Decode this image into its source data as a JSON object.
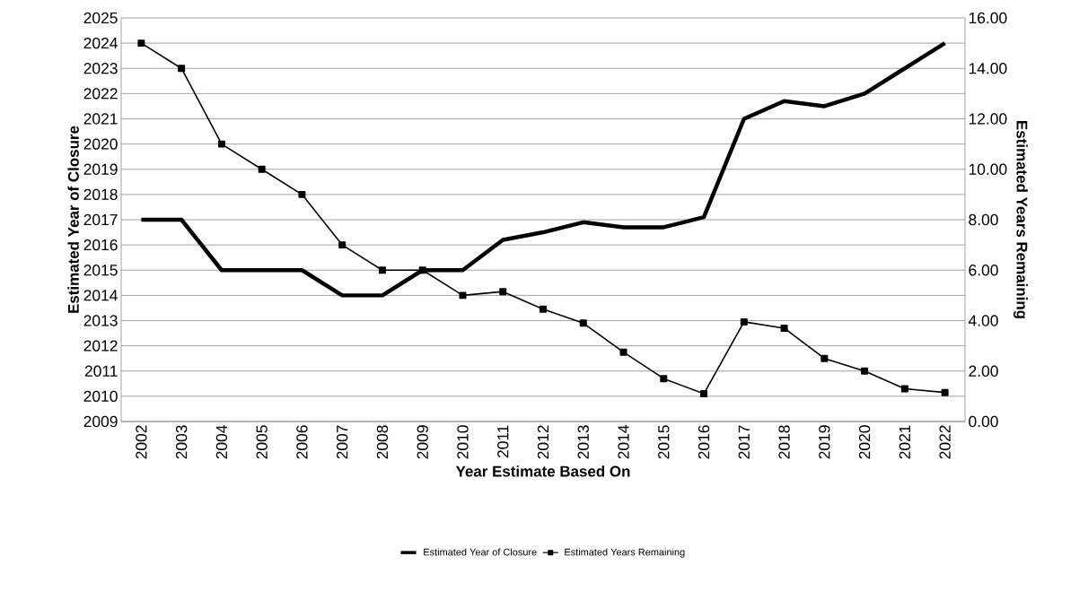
{
  "chart_data": {
    "type": "line",
    "xlabel": "Year Estimate Based On",
    "ylabel": "Estimated Year of Closure",
    "y2label": "Estimated Years Remaining",
    "categories": [
      "2002",
      "2003",
      "2004",
      "2005",
      "2006",
      "2007",
      "2008",
      "2009",
      "2010",
      "2011",
      "2012",
      "2013",
      "2014",
      "2015",
      "2016",
      "2017",
      "2018",
      "2019",
      "2020",
      "2021",
      "2022"
    ],
    "series": [
      {
        "name": "Estimated Year of Closure",
        "color": "#000000",
        "marker": "none",
        "values": [
          2017,
          2017,
          2015,
          2015,
          2015,
          2014,
          2014,
          2015,
          2015,
          2016.2,
          2016.5,
          2016.9,
          2016.7,
          2016.7,
          2017.1,
          2021,
          2021.7,
          2021.5,
          2022,
          2023,
          2024
        ]
      },
      {
        "name": "Estimated Years Remaining",
        "color": "#000000",
        "marker": "square",
        "axis": "y2",
        "values": [
          15,
          14,
          11,
          10,
          9,
          7,
          6,
          6,
          5,
          5.15,
          4.45,
          3.9,
          2.75,
          1.7,
          1.1,
          3.95,
          3.7,
          2.5,
          2,
          1.3,
          1.15
        ]
      }
    ],
    "ylim": [
      2009,
      2025
    ],
    "yticks": [
      2009,
      2010,
      2011,
      2012,
      2013,
      2014,
      2015,
      2016,
      2017,
      2018,
      2019,
      2020,
      2021,
      2022,
      2023,
      2024,
      2025
    ],
    "y2lim": [
      0,
      16
    ],
    "y2ticks": [
      {
        "value": 0,
        "label": "0.00"
      },
      {
        "value": 2,
        "label": "2.00"
      },
      {
        "value": 4,
        "label": "4.00"
      },
      {
        "value": 6,
        "label": "6.00"
      },
      {
        "value": 8,
        "label": "8.00"
      },
      {
        "value": 10,
        "label": "10.00"
      },
      {
        "value": 12,
        "label": "12.00"
      },
      {
        "value": 14,
        "label": "14.00"
      },
      {
        "value": 16,
        "label": "16.00"
      }
    ],
    "grid": "y",
    "legend": "bottom"
  }
}
